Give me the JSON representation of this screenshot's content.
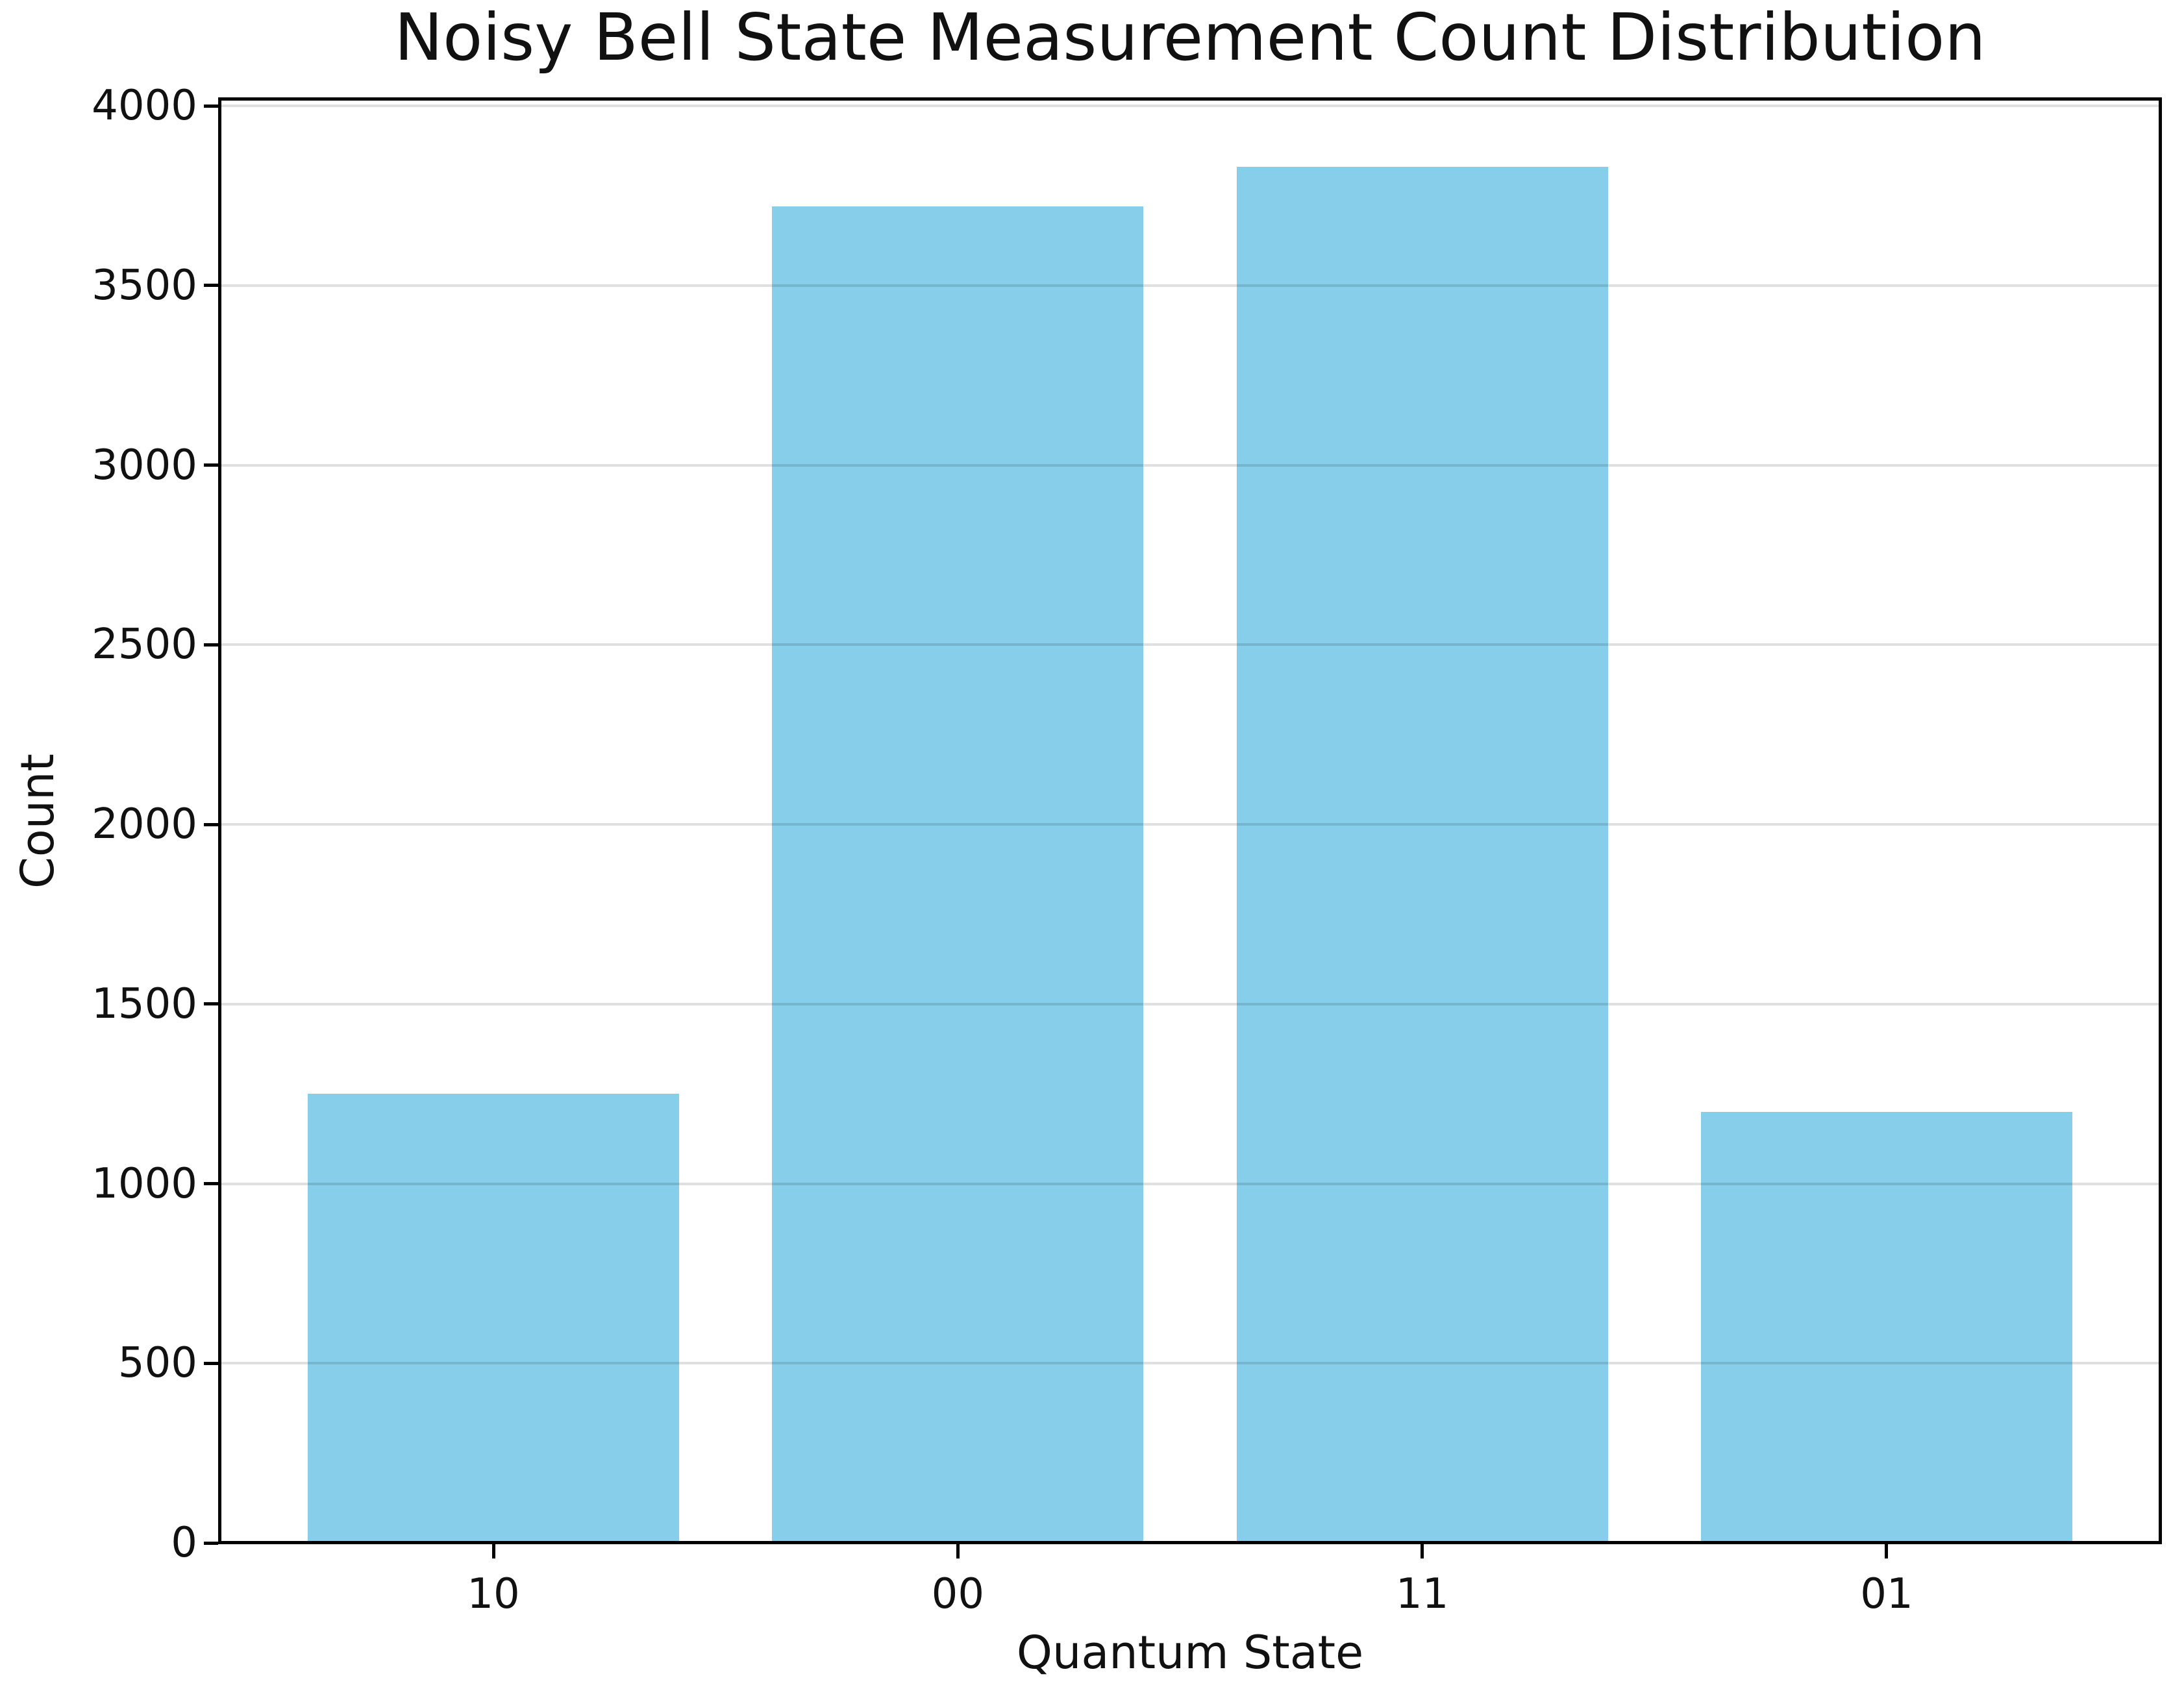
{
  "figure": {
    "background": "#ffffff"
  },
  "chart_data": {
    "type": "bar",
    "title": "Noisy Bell State Measurement Count Distribution",
    "xlabel": "Quantum State",
    "ylabel": "Count",
    "categories": [
      "10",
      "00",
      "11",
      "01"
    ],
    "values": [
      1250,
      3720,
      3830,
      1200
    ],
    "ylim": [
      0,
      4020
    ],
    "yticks": [
      0,
      500,
      1000,
      1500,
      2000,
      2500,
      3000,
      3500,
      4000
    ],
    "xlim": [
      -0.59,
      3.59
    ],
    "bar_width_units": 0.8,
    "bar_color": "#87CEEB",
    "axis_color": "#000000",
    "text_color": "#111111",
    "grid_color": "rgba(0,0,0,0.12)",
    "grid": "horizontal",
    "legend": "none"
  }
}
